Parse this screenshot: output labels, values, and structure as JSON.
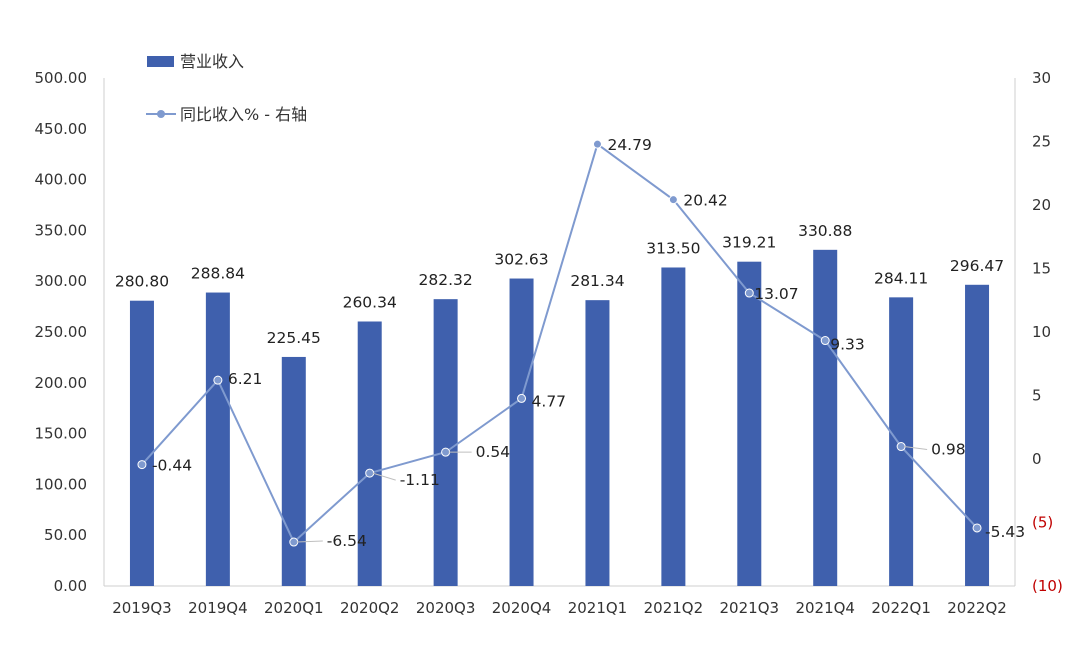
{
  "chart_data": {
    "type": "bar+line",
    "categories": [
      "2019Q3",
      "2019Q4",
      "2020Q1",
      "2020Q2",
      "2020Q3",
      "2020Q4",
      "2021Q1",
      "2021Q2",
      "2021Q3",
      "2021Q4",
      "2022Q1",
      "2022Q2"
    ],
    "series": [
      {
        "name": "营业收入",
        "type": "bar",
        "axis": "left",
        "color": "#3f60ad",
        "values": [
          280.8,
          288.84,
          225.45,
          260.34,
          282.32,
          302.63,
          281.34,
          313.5,
          319.21,
          330.88,
          284.11,
          296.47
        ],
        "labels": [
          "280.80",
          "288.84",
          "225.45",
          "260.34",
          "282.32",
          "302.63",
          "281.34",
          "313.50",
          "319.21",
          "330.88",
          "284.11",
          "296.47"
        ]
      },
      {
        "name": "同比收入% - 右轴",
        "type": "line",
        "axis": "right",
        "color": "#7f9acf",
        "values": [
          -0.44,
          6.21,
          -6.54,
          -1.11,
          0.54,
          4.77,
          24.79,
          20.42,
          13.07,
          9.33,
          0.98,
          -5.43
        ],
        "labels": [
          "-0.44",
          "6.21",
          "-6.54",
          "-1.11",
          "0.54",
          "4.77",
          "24.79",
          "20.42",
          "13.07",
          "9.33",
          "0.98",
          "-5.43"
        ]
      }
    ],
    "left_axis": {
      "ylim": [
        0,
        500
      ],
      "ticks": [
        0,
        50,
        100,
        150,
        200,
        250,
        300,
        350,
        400,
        450,
        500
      ],
      "tick_labels": [
        "0.00",
        "50.00",
        "100.00",
        "150.00",
        "200.00",
        "250.00",
        "300.00",
        "350.00",
        "400.00",
        "450.00",
        "500.00"
      ]
    },
    "right_axis": {
      "ylim": [
        -10,
        30
      ],
      "ticks": [
        -10,
        -5,
        0,
        5,
        10,
        15,
        20,
        25,
        30
      ],
      "tick_labels": [
        "(10)",
        "(5)",
        "0",
        "5",
        "10",
        "15",
        "20",
        "25",
        "30"
      ],
      "negative_color": "#c00000"
    },
    "legend": {
      "placement": "top-left"
    },
    "grid": false
  }
}
